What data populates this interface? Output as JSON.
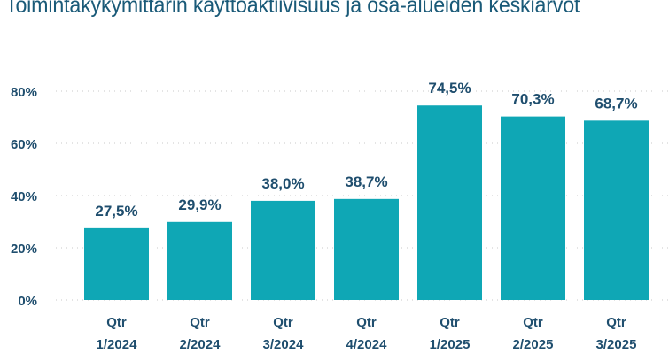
{
  "chart_data": {
    "type": "bar",
    "title": "Toimintakykymittarin käyttöaktiivisuus ja osa-alueiden keskiarvot",
    "categories": [
      [
        "Qtr",
        "1/2024"
      ],
      [
        "Qtr",
        "2/2024"
      ],
      [
        "Qtr",
        "3/2024"
      ],
      [
        "Qtr",
        "4/2024"
      ],
      [
        "Qtr",
        "1/2025"
      ],
      [
        "Qtr",
        "2/2025"
      ],
      [
        "Qtr",
        "3/2025"
      ]
    ],
    "values": [
      27.5,
      29.9,
      38.0,
      38.7,
      74.5,
      70.3,
      68.7
    ],
    "value_labels": [
      "27,5%",
      "29,9%",
      "38,0%",
      "38,7%",
      "74,5%",
      "70,3%",
      "68,7%"
    ],
    "yticks": [
      0,
      20,
      40,
      60,
      80
    ],
    "ytick_labels": [
      "0%",
      "20%",
      "40%",
      "60%",
      "80%"
    ],
    "ylim": [
      0,
      80
    ],
    "grid": true,
    "xlabel": "",
    "ylabel": "",
    "colors": {
      "bar": "#0fa7b5",
      "text": "#1f4e6e",
      "grid": "#c8c8c8"
    }
  }
}
